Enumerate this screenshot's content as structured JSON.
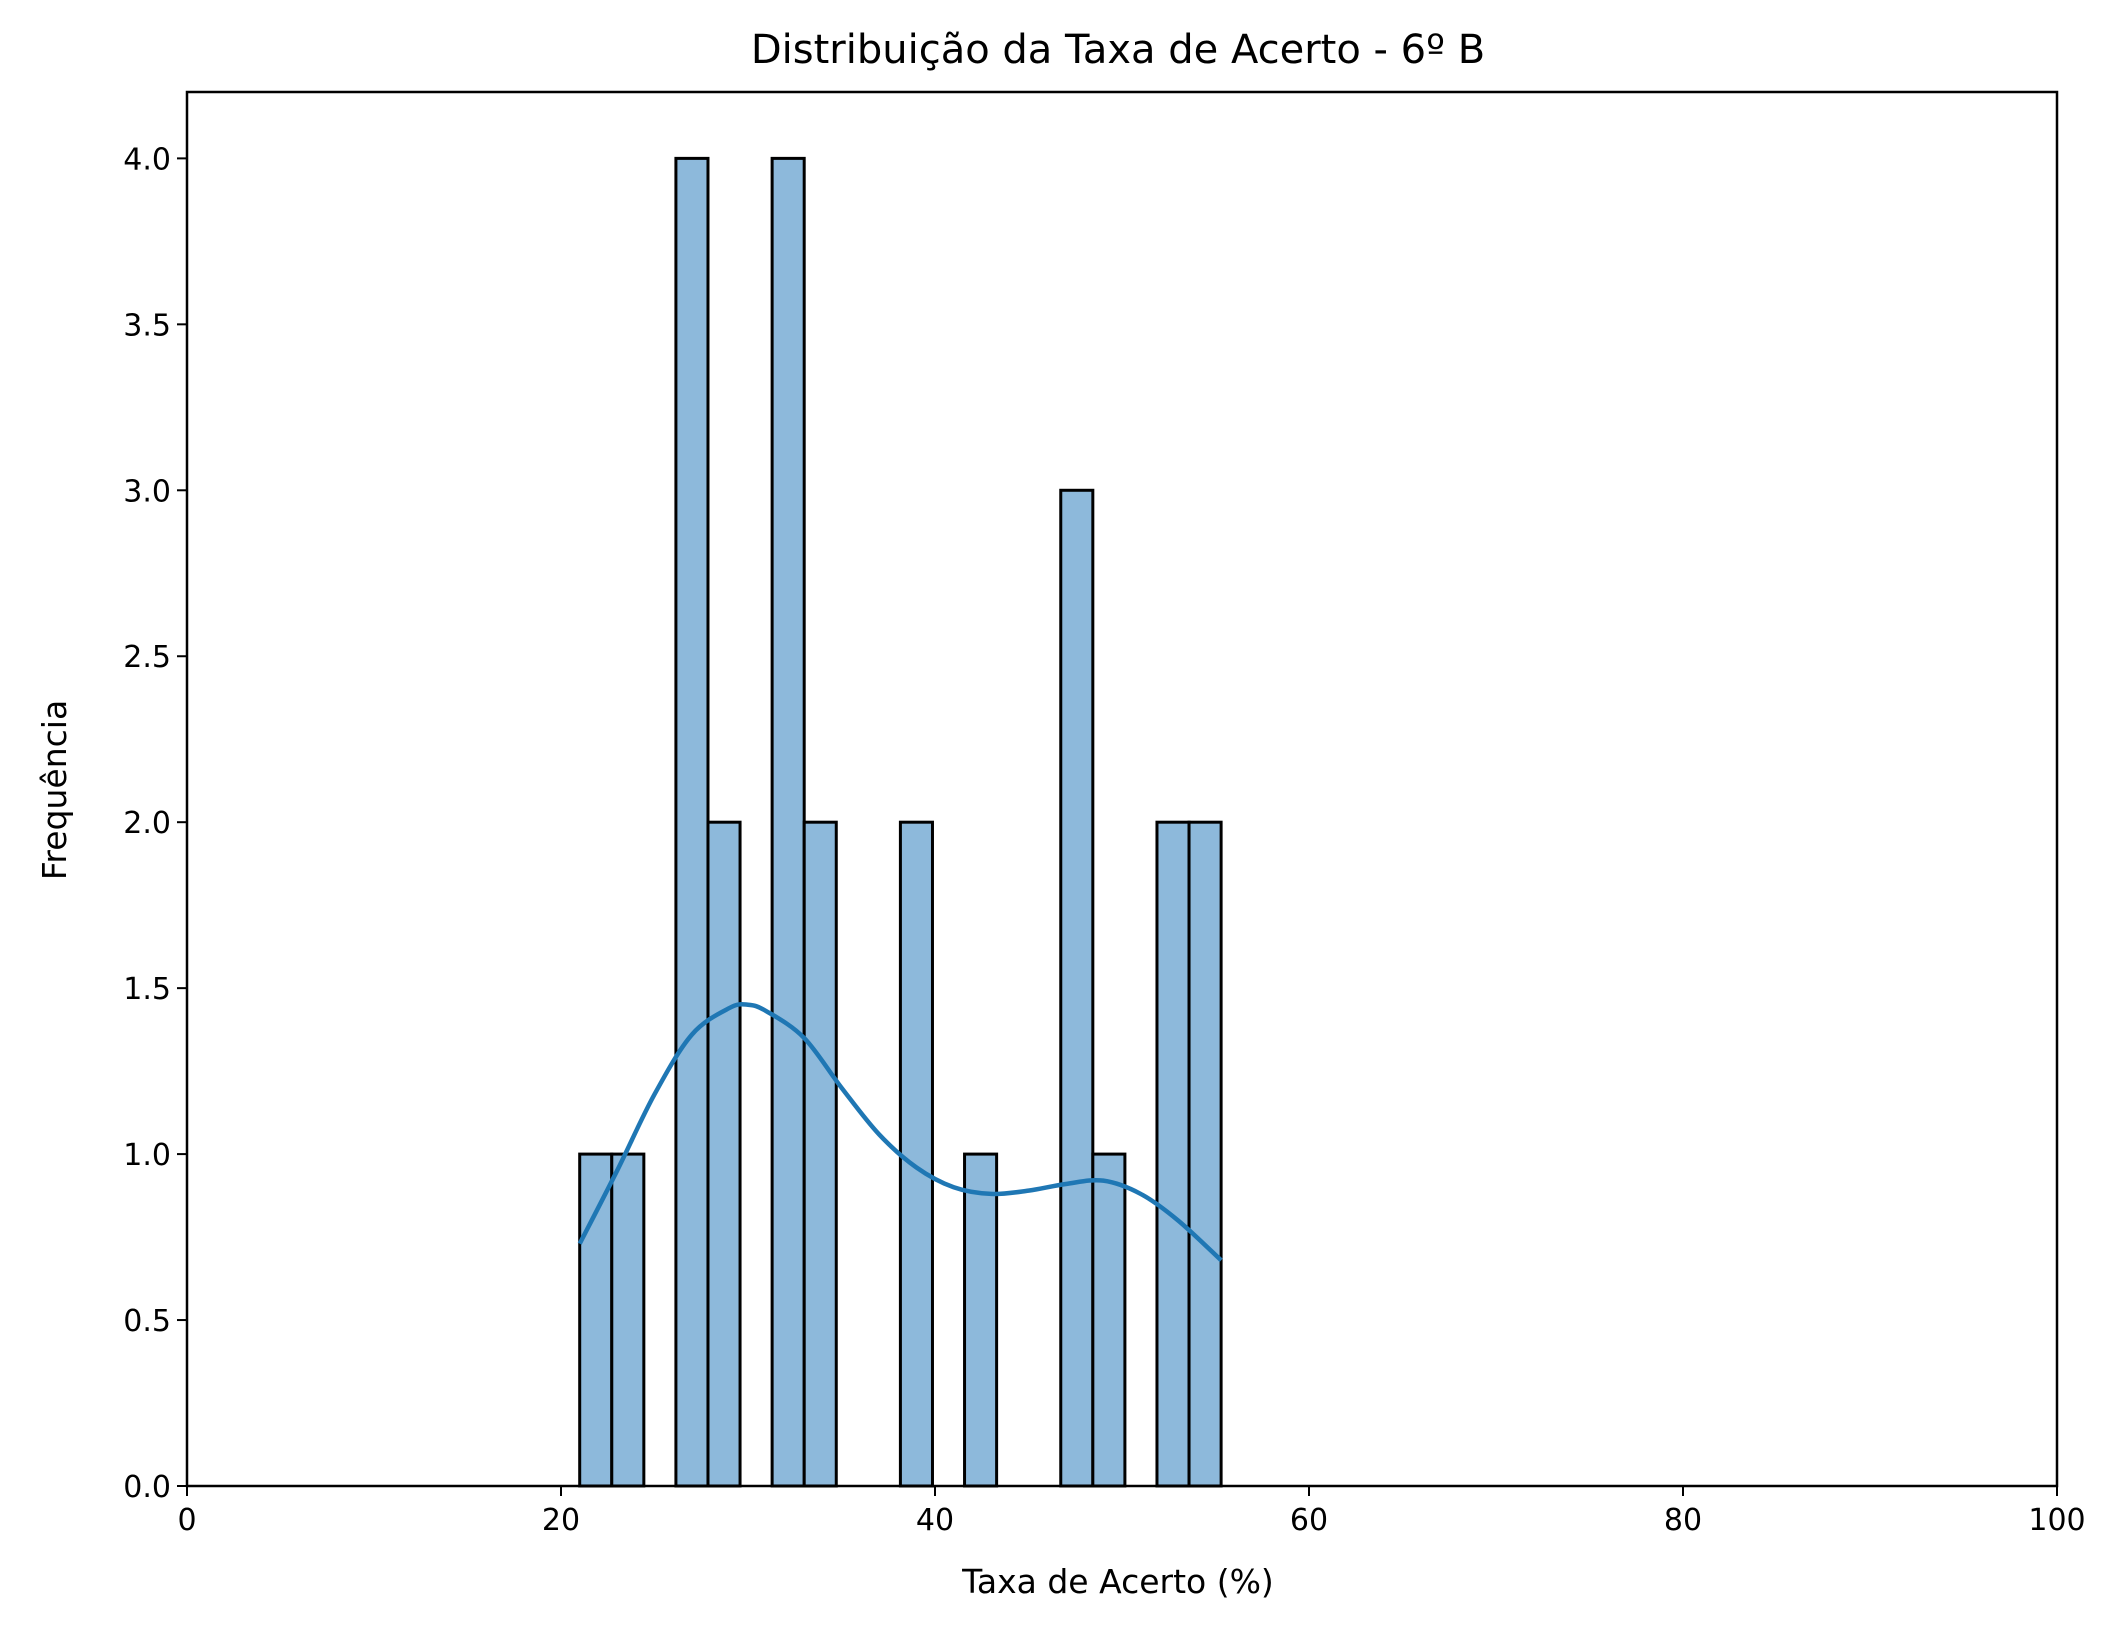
{
  "chart_data": {
    "type": "histogram",
    "title": "Distribuição da Taxa de Acerto - 6º B",
    "xlabel": "Taxa de Acerto (%)",
    "ylabel": "Frequência",
    "xlim": [
      0,
      100
    ],
    "ylim": [
      0,
      4.2
    ],
    "x_ticks": [
      "0",
      "20",
      "40",
      "60",
      "80",
      "100"
    ],
    "y_ticks": [
      "0.0",
      "0.5",
      "1.0",
      "1.5",
      "2.0",
      "2.5",
      "3.0",
      "3.5",
      "4.0"
    ],
    "bin_range": [
      21.0,
      55.3
    ],
    "bin_count": 20,
    "counts": [
      1,
      1,
      0,
      4,
      2,
      0,
      4,
      2,
      0,
      0,
      2,
      0,
      1,
      0,
      0,
      3,
      1,
      0,
      2,
      2
    ],
    "kde": {
      "x": [
        21.0,
        23.0,
        25.0,
        27.0,
        29.0,
        30.0,
        31.0,
        33.0,
        35.0,
        37.0,
        39.0,
        41.0,
        43.0,
        45.0,
        47.0,
        49.0,
        51.0,
        53.0,
        55.3
      ],
      "y": [
        0.73,
        0.95,
        1.18,
        1.36,
        1.44,
        1.45,
        1.43,
        1.35,
        1.2,
        1.06,
        0.96,
        0.9,
        0.88,
        0.89,
        0.91,
        0.92,
        0.88,
        0.8,
        0.68
      ]
    },
    "grid": false,
    "colors": {
      "bar_fill": "#8db9db",
      "bar_edge": "#000000",
      "kde_line": "#1f77b4"
    }
  }
}
